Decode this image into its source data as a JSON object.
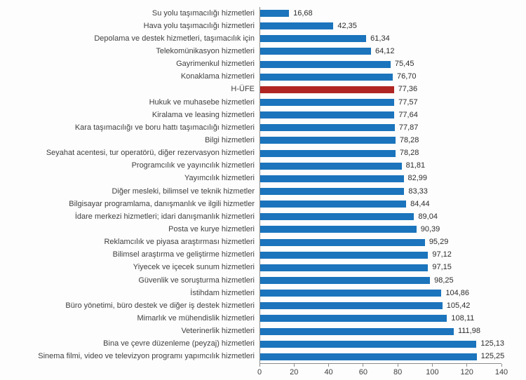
{
  "chart_data": {
    "type": "bar",
    "orientation": "horizontal",
    "title": "",
    "xlabel": "",
    "ylabel": "",
    "xlim": [
      0,
      140
    ],
    "x_ticks": [
      0,
      20,
      40,
      60,
      80,
      100,
      120,
      140
    ],
    "grid": false,
    "legend": false,
    "bar_color": "#1b74bc",
    "highlight_color": "#b02522",
    "axis_color": "#8c8c8c",
    "label_color": "#3f3f3f",
    "items": [
      {
        "label": "Su yolu taşımacılığı hizmetleri",
        "value": 16.68,
        "value_label": "16,68",
        "highlight": false
      },
      {
        "label": "Hava yolu taşımacılığı hizmetleri",
        "value": 42.35,
        "value_label": "42,35",
        "highlight": false
      },
      {
        "label": "Depolama ve destek hizmetleri, taşımacılık için",
        "value": 61.34,
        "value_label": "61,34",
        "highlight": false
      },
      {
        "label": "Telekomünikasyon hizmetleri",
        "value": 64.12,
        "value_label": "64,12",
        "highlight": false
      },
      {
        "label": "Gayrimenkul hizmetleri",
        "value": 75.45,
        "value_label": "75,45",
        "highlight": false
      },
      {
        "label": "Konaklama hizmetleri",
        "value": 76.7,
        "value_label": "76,70",
        "highlight": false
      },
      {
        "label": "H-ÜFE",
        "value": 77.36,
        "value_label": "77,36",
        "highlight": true
      },
      {
        "label": "Hukuk ve muhasebe hizmetleri",
        "value": 77.57,
        "value_label": "77,57",
        "highlight": false
      },
      {
        "label": "Kiralama ve leasing hizmetleri",
        "value": 77.64,
        "value_label": "77,64",
        "highlight": false
      },
      {
        "label": "Kara taşımacılığı ve boru hattı taşımacılığı hizmetleri",
        "value": 77.87,
        "value_label": "77,87",
        "highlight": false
      },
      {
        "label": "Bilgi hizmetleri",
        "value": 78.28,
        "value_label": "78,28",
        "highlight": false
      },
      {
        "label": "Seyahat acentesi, tur operatörü, diğer rezervasyon hizmetleri",
        "value": 78.28,
        "value_label": "78,28",
        "highlight": false
      },
      {
        "label": "Programcılık ve yayıncılık hizmetleri",
        "value": 81.81,
        "value_label": "81,81",
        "highlight": false
      },
      {
        "label": "Yayımcılık hizmetleri",
        "value": 82.99,
        "value_label": "82,99",
        "highlight": false
      },
      {
        "label": "Diğer mesleki, bilimsel ve teknik hizmetler",
        "value": 83.33,
        "value_label": "83,33",
        "highlight": false
      },
      {
        "label": "Bilgisayar programlama, danışmanlık ve ilgili hizmetler",
        "value": 84.44,
        "value_label": "84,44",
        "highlight": false
      },
      {
        "label": "İdare merkezi hizmetleri; idari danışmanlık hizmetleri",
        "value": 89.04,
        "value_label": "89,04",
        "highlight": false
      },
      {
        "label": "Posta ve kurye hizmetleri",
        "value": 90.39,
        "value_label": "90,39",
        "highlight": false
      },
      {
        "label": "Reklamcılık ve piyasa araştırması hizmetleri",
        "value": 95.29,
        "value_label": "95,29",
        "highlight": false
      },
      {
        "label": "Bilimsel araştırma ve geliştirme hizmetleri",
        "value": 97.12,
        "value_label": "97,12",
        "highlight": false
      },
      {
        "label": "Yiyecek ve içecek sunum hizmetleri",
        "value": 97.15,
        "value_label": "97,15",
        "highlight": false
      },
      {
        "label": "Güvenlik ve soruşturma hizmetleri",
        "value": 98.25,
        "value_label": "98,25",
        "highlight": false
      },
      {
        "label": "İstihdam hizmetleri",
        "value": 104.86,
        "value_label": "104,86",
        "highlight": false
      },
      {
        "label": "Büro yönetimi, büro destek ve diğer iş destek hizmetleri",
        "value": 105.42,
        "value_label": "105,42",
        "highlight": false
      },
      {
        "label": "Mimarlık ve mühendislik hizmetleri",
        "value": 108.11,
        "value_label": "108,11",
        "highlight": false
      },
      {
        "label": "Veterinerlik hizmetleri",
        "value": 111.98,
        "value_label": "111,98",
        "highlight": false
      },
      {
        "label": "Bina ve çevre düzenleme (peyzaj) hizmetleri",
        "value": 125.13,
        "value_label": "125,13",
        "highlight": false
      },
      {
        "label": "Sinema filmi, video ve televizyon programı yapımcılık hizmetleri",
        "value": 125.25,
        "value_label": "125,25",
        "highlight": false
      }
    ]
  }
}
